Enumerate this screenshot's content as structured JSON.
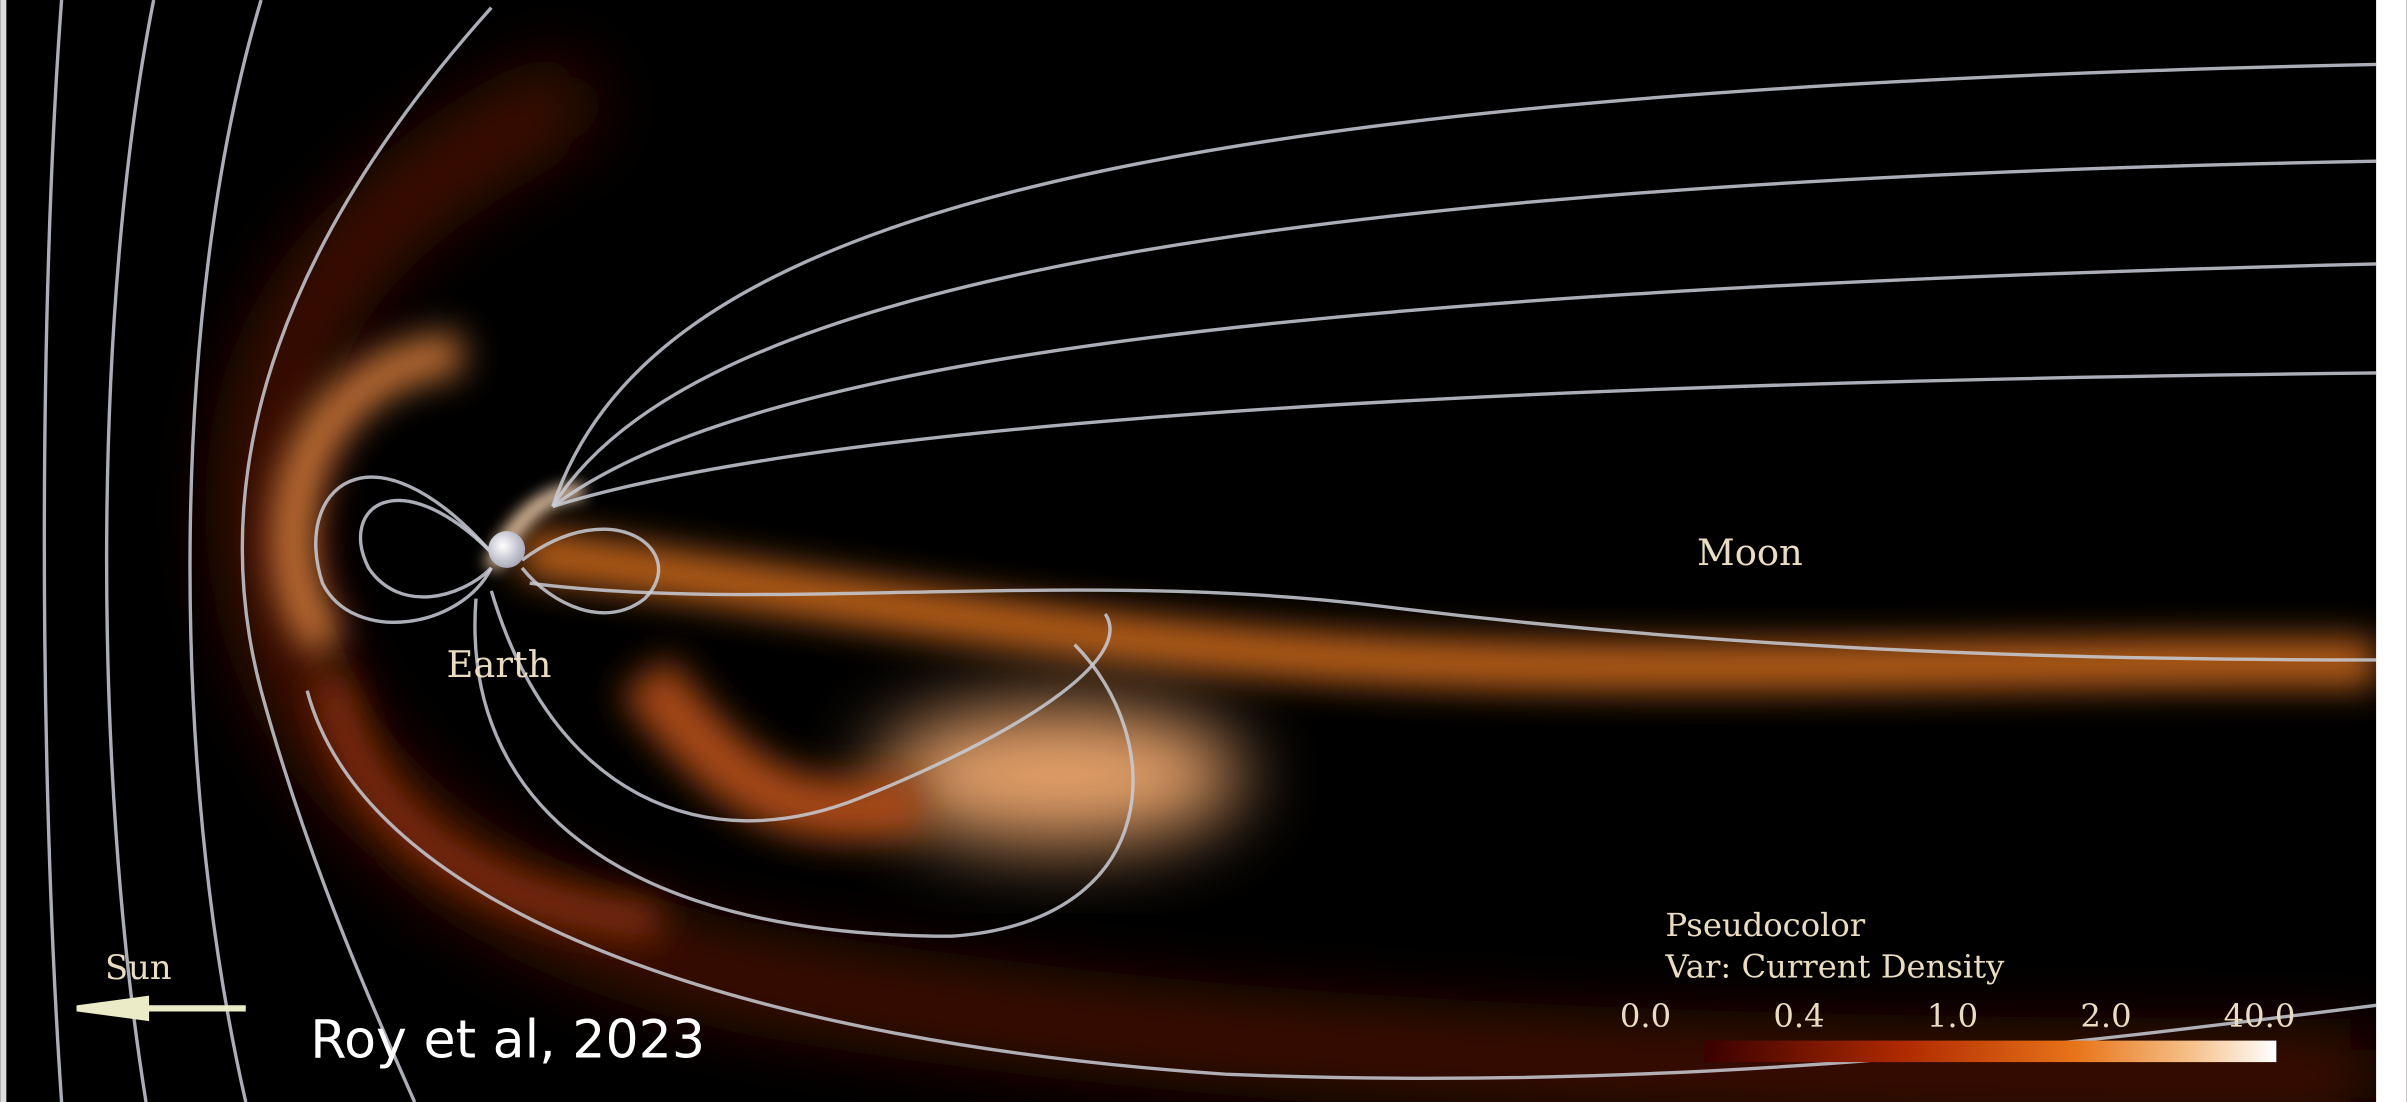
{
  "labels": {
    "moon": "Moon",
    "earth": "Earth",
    "sun": "Sun",
    "credit": "Roy et al, 2023"
  },
  "colorbar": {
    "title": "Pseudocolor",
    "variable": "Var: Current Density",
    "tick_labels": [
      "0.0",
      "0.4",
      "1.0",
      "2.0",
      "40.0"
    ]
  }
}
